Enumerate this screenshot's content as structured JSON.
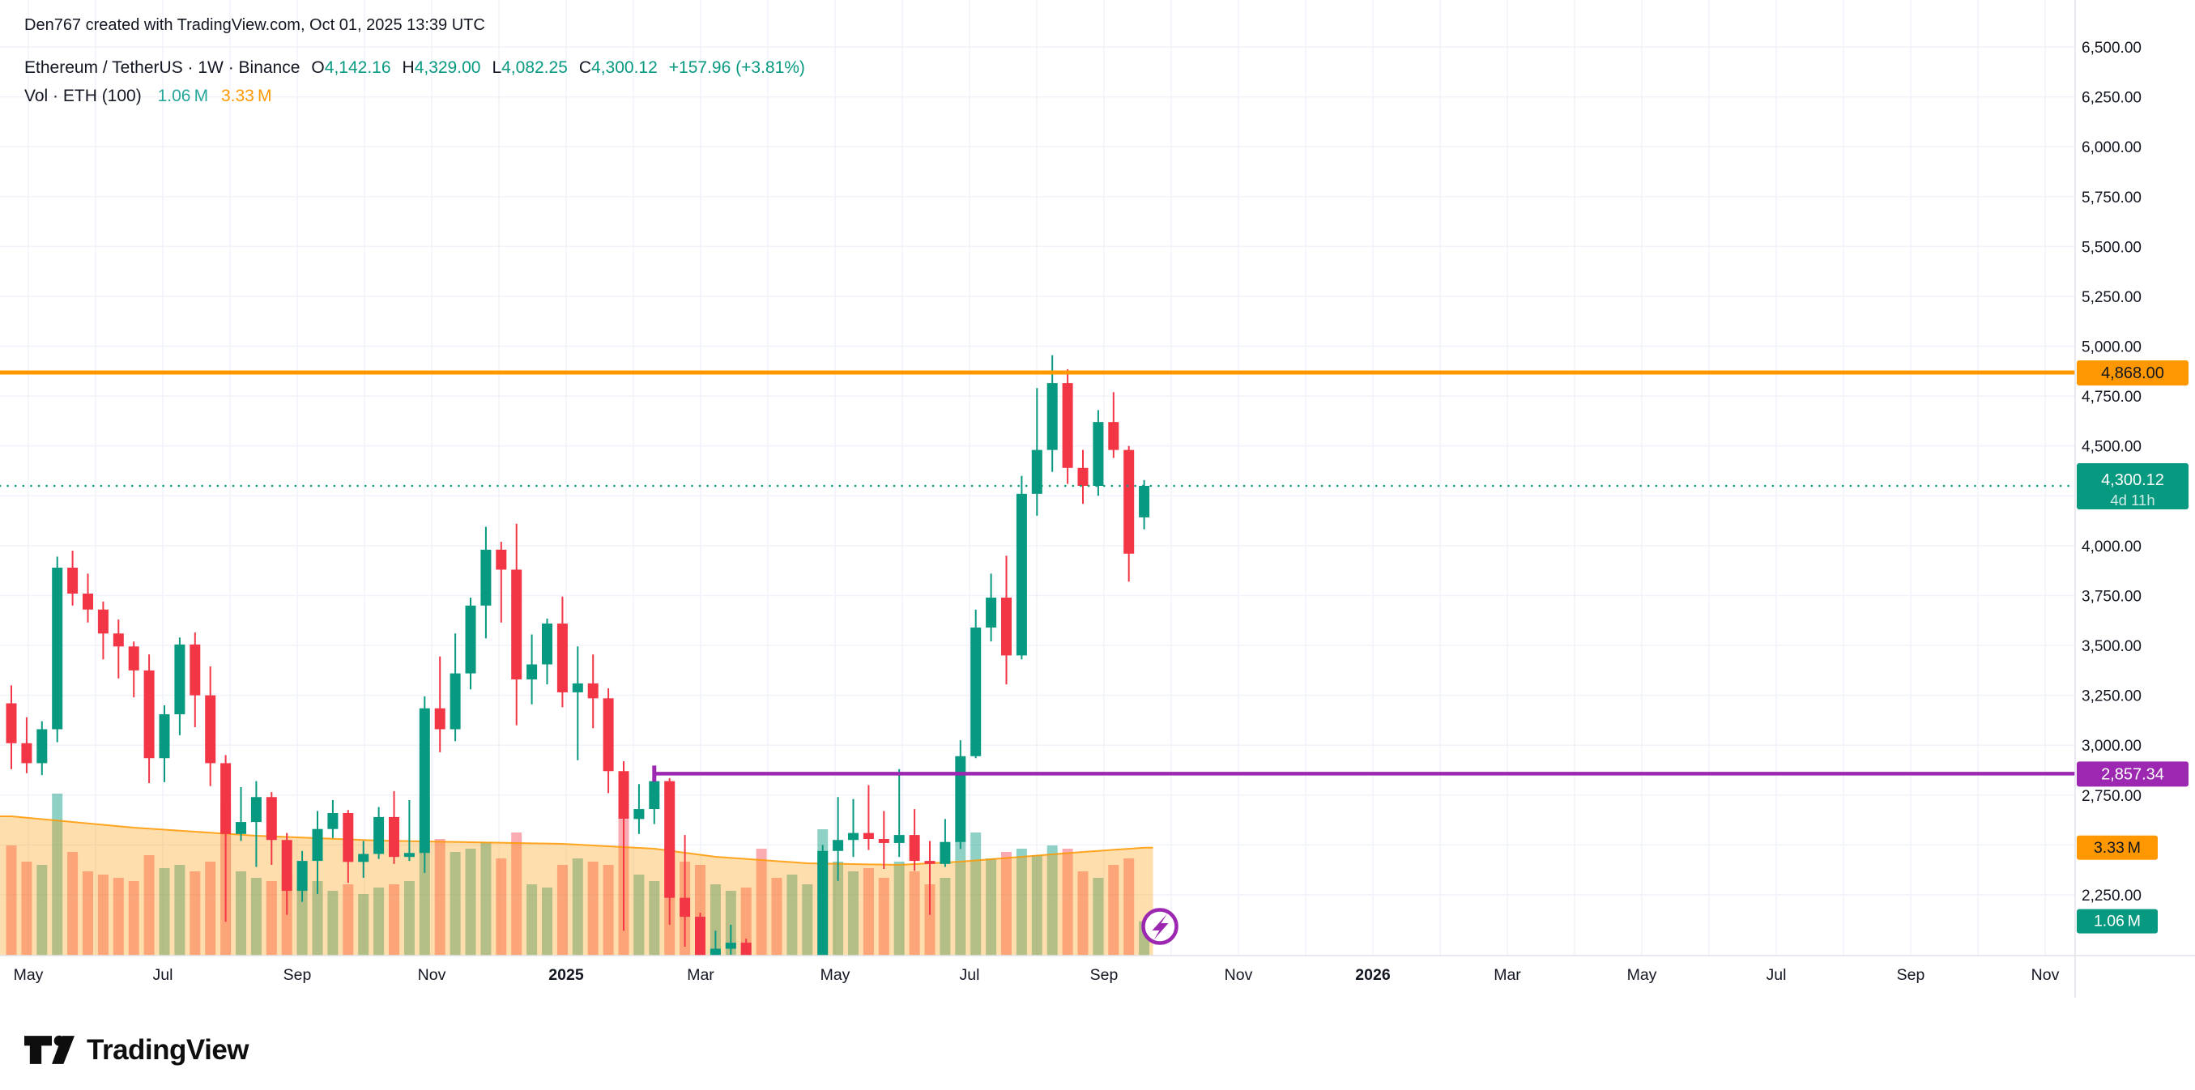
{
  "attribution": "Den767 created with TradingView.com, Oct 01, 2025 13:39 UTC",
  "logo": {
    "brand": "TradingView"
  },
  "legend": {
    "symbol": "Ethereum / TetherUS · 1W · Binance",
    "ohlc": [
      {
        "k": "O",
        "v": "4,142.16"
      },
      {
        "k": "H",
        "v": "4,329.00"
      },
      {
        "k": "L",
        "v": "4,082.25"
      },
      {
        "k": "C",
        "v": "4,300.12"
      }
    ],
    "change": "+157.96 (+3.81%)",
    "volume_label": "Vol · ETH (100)",
    "volume_current": "1.06 M",
    "volume_ma": "3.33 M"
  },
  "colors": {
    "up": "#089981",
    "down": "#f23645",
    "vol_up": "rgba(8,153,129,0.45)",
    "vol_down": "rgba(242,54,69,0.42)",
    "vol_ma_line": "#ff9800",
    "vol_ma_fill": "rgba(255,152,0,0.32)",
    "level_orange": "#ff9800",
    "level_purple": "#9c27b0",
    "current_line": "#089981",
    "grid": "#f0f3fa",
    "axis_border": "#e0e3eb",
    "axis_text": "#131722",
    "legend_vol_value": "#26a69a",
    "legend_vol_ma": "#ff9800",
    "legend_ohlc_value": "#089981",
    "marker_ring": "#9c27b0"
  },
  "chart_data": {
    "type": "candlestick",
    "symbol": "ETHUSDT",
    "interval": "1W",
    "exchange": "Binance",
    "start_week": "2024-04-29",
    "price_axis": {
      "min": 2250,
      "max": 6500,
      "step": 250,
      "tick_labels": [
        "6,500.00",
        "6,250.00",
        "6,000.00",
        "5,750.00",
        "5,500.00",
        "5,250.00",
        "5,000.00",
        "4,750.00",
        "4,500.00",
        "4,250.00",
        "4,000.00",
        "3,750.00",
        "3,500.00",
        "3,250.00",
        "3,000.00",
        "2,750.00",
        "2,500.00",
        "2,250.00"
      ]
    },
    "time_axis": {
      "labels": [
        {
          "label": "May",
          "bold": false
        },
        {
          "label": "Jul",
          "bold": false
        },
        {
          "label": "Sep",
          "bold": false
        },
        {
          "label": "Nov",
          "bold": false
        },
        {
          "label": "2025",
          "bold": true
        },
        {
          "label": "Mar",
          "bold": false
        },
        {
          "label": "May",
          "bold": false
        },
        {
          "label": "Jul",
          "bold": false
        },
        {
          "label": "Sep",
          "bold": false
        },
        {
          "label": "Nov",
          "bold": false
        },
        {
          "label": "2026",
          "bold": true
        },
        {
          "label": "Mar",
          "bold": false
        },
        {
          "label": "May",
          "bold": false
        },
        {
          "label": "Jul",
          "bold": false
        },
        {
          "label": "Sep",
          "bold": false
        },
        {
          "label": "Nov",
          "bold": false
        }
      ]
    },
    "levels": [
      {
        "name": "resistance-line",
        "value": 4868.0,
        "label": "4,868.00",
        "style": "solid",
        "color": "#ff9800",
        "badge_text_color": "#131722",
        "start_index": 0
      },
      {
        "name": "current-price-line",
        "value": 4300.12,
        "label": "4,300.12",
        "countdown": "4d 11h",
        "style": "dotted",
        "color": "#089981",
        "badge_text_color": "#ffffff",
        "start_index": 0
      },
      {
        "name": "support-line",
        "value": 2857.34,
        "label": "2,857.34",
        "style": "solid",
        "color": "#9c27b0",
        "badge_text_color": "#ffffff",
        "start_index": 42
      }
    ],
    "volume_badges": {
      "ma": {
        "label": "3.33 M",
        "value": 3.33,
        "color": "#ff9800",
        "text": "#131722"
      },
      "current": {
        "label": "1.06 M",
        "value": 1.06,
        "color": "#089981",
        "text": "#ffffff"
      }
    },
    "vol_ma_keypoints": [
      {
        "i": 0,
        "v": 4.3
      },
      {
        "i": 8,
        "v": 3.95
      },
      {
        "i": 16,
        "v": 3.7
      },
      {
        "i": 24,
        "v": 3.55
      },
      {
        "i": 30,
        "v": 3.5
      },
      {
        "i": 36,
        "v": 3.45
      },
      {
        "i": 42,
        "v": 3.3
      },
      {
        "i": 46,
        "v": 3.05
      },
      {
        "i": 52,
        "v": 2.85
      },
      {
        "i": 58,
        "v": 2.8
      },
      {
        "i": 62,
        "v": 2.9
      },
      {
        "i": 66,
        "v": 3.05
      },
      {
        "i": 70,
        "v": 3.2
      },
      {
        "i": 74,
        "v": 3.33
      }
    ],
    "candles": [
      [
        3210,
        3300,
        2880,
        3010,
        3.4
      ],
      [
        3010,
        3140,
        2860,
        2910,
        2.9
      ],
      [
        2910,
        3120,
        2850,
        3080,
        2.8
      ],
      [
        3080,
        3945,
        3015,
        3890,
        5.0
      ],
      [
        3890,
        3975,
        3700,
        3760,
        3.2
      ],
      [
        3760,
        3860,
        3615,
        3680,
        2.6
      ],
      [
        3680,
        3720,
        3430,
        3560,
        2.5
      ],
      [
        3560,
        3630,
        3335,
        3495,
        2.4
      ],
      [
        3495,
        3520,
        3240,
        3375,
        2.3
      ],
      [
        3375,
        3455,
        2810,
        2935,
        3.1
      ],
      [
        2935,
        3200,
        2815,
        3155,
        2.7
      ],
      [
        3155,
        3540,
        3050,
        3505,
        2.8
      ],
      [
        3505,
        3565,
        3090,
        3250,
        2.6
      ],
      [
        3250,
        3395,
        2795,
        2910,
        2.9
      ],
      [
        2910,
        2950,
        2115,
        2555,
        4.6
      ],
      [
        2555,
        2790,
        2520,
        2615,
        2.6
      ],
      [
        2615,
        2820,
        2390,
        2740,
        2.4
      ],
      [
        2740,
        2765,
        2400,
        2525,
        2.3
      ],
      [
        2525,
        2560,
        2150,
        2270,
        2.5
      ],
      [
        2270,
        2470,
        2215,
        2420,
        2.2
      ],
      [
        2420,
        2670,
        2255,
        2580,
        2.3
      ],
      [
        2580,
        2725,
        2535,
        2660,
        2.0
      ],
      [
        2660,
        2675,
        2310,
        2415,
        2.2
      ],
      [
        2415,
        2520,
        2335,
        2455,
        1.9
      ],
      [
        2455,
        2690,
        2430,
        2640,
        2.1
      ],
      [
        2640,
        2770,
        2405,
        2440,
        2.2
      ],
      [
        2440,
        2725,
        2420,
        2460,
        2.3
      ],
      [
        2460,
        3245,
        2360,
        3185,
        4.9
      ],
      [
        3185,
        3445,
        2965,
        3080,
        3.6
      ],
      [
        3080,
        3560,
        3020,
        3360,
        3.2
      ],
      [
        3360,
        3740,
        3280,
        3700,
        3.3
      ],
      [
        3700,
        4095,
        3535,
        3980,
        3.5
      ],
      [
        3980,
        4020,
        3615,
        3880,
        3.0
      ],
      [
        3880,
        4110,
        3100,
        3330,
        3.8
      ],
      [
        3330,
        3555,
        3205,
        3405,
        2.2
      ],
      [
        3405,
        3635,
        3305,
        3610,
        2.1
      ],
      [
        3610,
        3745,
        3190,
        3265,
        2.8
      ],
      [
        3265,
        3495,
        2925,
        3310,
        3.0
      ],
      [
        3310,
        3455,
        3085,
        3235,
        2.9
      ],
      [
        3235,
        3285,
        2760,
        2870,
        2.8
      ],
      [
        2870,
        2920,
        2070,
        2630,
        4.2
      ],
      [
        2630,
        2805,
        2555,
        2680,
        2.5
      ],
      [
        2680,
        2850,
        2605,
        2820,
        2.3
      ],
      [
        2820,
        2835,
        2100,
        2235,
        3.4
      ],
      [
        2235,
        2550,
        1990,
        2140,
        2.9
      ],
      [
        2140,
        2160,
        1755,
        1910,
        2.8
      ],
      [
        1910,
        2070,
        1870,
        1980,
        2.2
      ],
      [
        1980,
        2100,
        1950,
        2010,
        2.0
      ],
      [
        2010,
        2030,
        1760,
        1810,
        2.1
      ],
      [
        1810,
        1830,
        1385,
        1590,
        3.3
      ],
      [
        1590,
        1690,
        1540,
        1585,
        2.4
      ],
      [
        1585,
        1860,
        1560,
        1790,
        2.5
      ],
      [
        1790,
        1870,
        1720,
        1840,
        2.2
      ],
      [
        1840,
        2500,
        1780,
        2470,
        3.9
      ],
      [
        2470,
        2740,
        2320,
        2525,
        2.9
      ],
      [
        2525,
        2730,
        2440,
        2560,
        2.6
      ],
      [
        2560,
        2800,
        2475,
        2530,
        2.7
      ],
      [
        2530,
        2670,
        2380,
        2510,
        2.4
      ],
      [
        2510,
        2880,
        2440,
        2550,
        2.9
      ],
      [
        2550,
        2680,
        2370,
        2420,
        2.6
      ],
      [
        2420,
        2520,
        2150,
        2405,
        2.2
      ],
      [
        2405,
        2630,
        2390,
        2515,
        2.4
      ],
      [
        2515,
        3025,
        2480,
        2945,
        3.6
      ],
      [
        2945,
        3680,
        2935,
        3590,
        3.8
      ],
      [
        3590,
        3860,
        3520,
        3740,
        3.0
      ],
      [
        3740,
        3950,
        3305,
        3450,
        3.2
      ],
      [
        3450,
        4350,
        3430,
        4260,
        3.3
      ],
      [
        4260,
        4790,
        4150,
        4480,
        3.1
      ],
      [
        4480,
        4955,
        4370,
        4815,
        3.4
      ],
      [
        4815,
        4885,
        4310,
        4390,
        3.3
      ],
      [
        4390,
        4480,
        4210,
        4300,
        2.6
      ],
      [
        4300,
        4680,
        4250,
        4620,
        2.4
      ],
      [
        4620,
        4770,
        4440,
        4480,
        2.8
      ],
      [
        4480,
        4500,
        3820,
        3960,
        3.0
      ],
      [
        4142.16,
        4329,
        4082.25,
        4300.12,
        1.06
      ]
    ],
    "marker": {
      "name": "lightning-marker",
      "icon": "lightning-icon",
      "ring_color": "#9c27b0"
    }
  }
}
